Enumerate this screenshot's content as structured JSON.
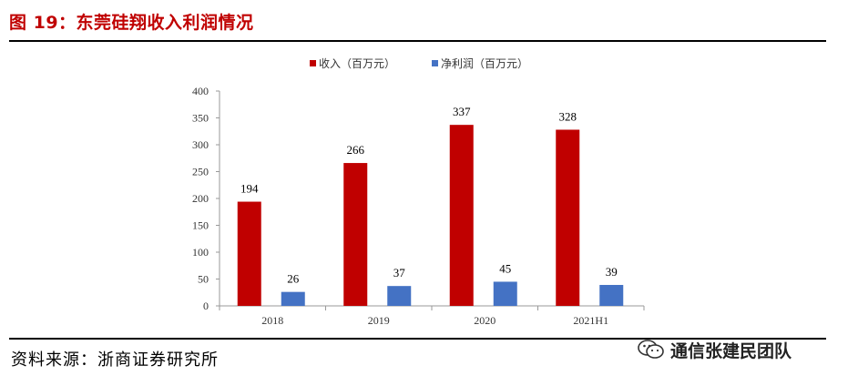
{
  "header": {
    "title": "图 19：东莞硅翔收入利润情况"
  },
  "footer": {
    "source": "资料来源：浙商证券研究所",
    "watermark": "通信张建民团队",
    "watermark_icon": "wechat-icon"
  },
  "colors": {
    "revenue": "#c00000",
    "profit": "#4472c4",
    "title": "#c00000"
  },
  "chart_data": {
    "type": "bar",
    "title": "",
    "xlabel": "",
    "ylabel": "",
    "categories": [
      "2018",
      "2019",
      "2020",
      "2021H1"
    ],
    "series": [
      {
        "name": "收入（百万元）",
        "values": [
          194,
          266,
          337,
          328
        ]
      },
      {
        "name": "净利润（百万元）",
        "values": [
          26,
          37,
          45,
          39
        ]
      }
    ],
    "ylim": [
      0,
      400
    ],
    "yticks": [
      0,
      50,
      100,
      150,
      200,
      250,
      300,
      350,
      400
    ],
    "legend": "top-center",
    "grid": false
  }
}
